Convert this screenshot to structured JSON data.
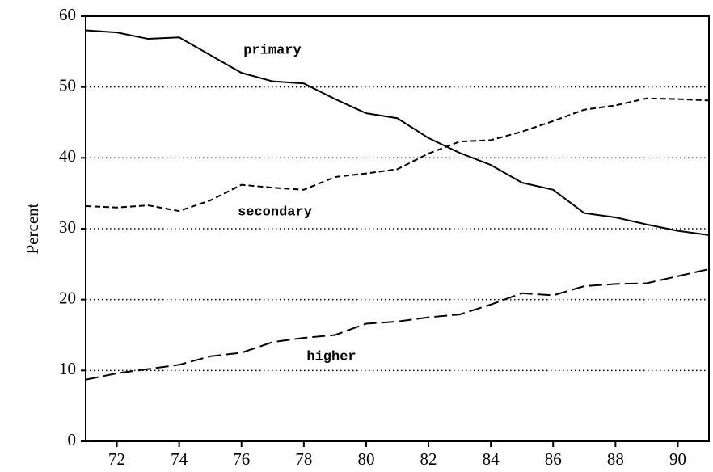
{
  "chart_data": {
    "type": "line",
    "y_label": "Percent",
    "x": [
      71,
      72,
      73,
      74,
      75,
      76,
      77,
      78,
      79,
      80,
      81,
      82,
      83,
      84,
      85,
      86,
      87,
      88,
      89,
      90,
      91
    ],
    "series": [
      {
        "name": "primary",
        "color": "#000000",
        "line_style": "solid",
        "values": [
          58,
          57.7,
          56.8,
          57,
          54.5,
          52,
          50.8,
          50.5,
          48.3,
          46.3,
          45.6,
          42.8,
          40.7,
          39,
          36.5,
          35.5,
          32.2,
          31.6,
          30.6,
          29.7,
          29.1
        ]
      },
      {
        "name": "secondary",
        "color": "#000000",
        "line_style": "short-dash",
        "values": [
          33.2,
          33,
          33.3,
          32.5,
          34,
          36.2,
          35.8,
          35.5,
          37.3,
          37.8,
          38.4,
          40.6,
          42.3,
          42.5,
          43.7,
          45.2,
          46.8,
          47.4,
          48.4,
          48.3,
          48.1
        ]
      },
      {
        "name": "higher",
        "color": "#000000",
        "line_style": "long-dash",
        "values": [
          8.7,
          9.6,
          10.2,
          10.8,
          12,
          12.5,
          14,
          14.6,
          15,
          16.6,
          16.9,
          17.5,
          17.9,
          19.3,
          20.9,
          20.6,
          21.9,
          22.2,
          22.3,
          23.3,
          24.3
        ]
      }
    ],
    "xlim": [
      71,
      91
    ],
    "xticks": [
      72,
      74,
      76,
      78,
      80,
      82,
      84,
      86,
      88,
      90
    ],
    "ylim": [
      0,
      60
    ],
    "yticks": [
      0,
      10,
      20,
      30,
      40,
      50,
      60
    ],
    "grid": true
  }
}
